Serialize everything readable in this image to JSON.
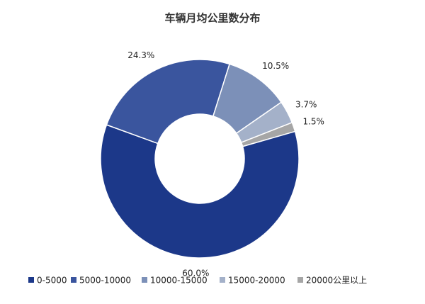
{
  "chart_data": {
    "type": "donut",
    "title": "车辆月均公里数分布",
    "categories": [
      "0-5000",
      "5000-10000",
      "10000-15000",
      "15000-20000",
      "20000公里以上"
    ],
    "values": [
      60.0,
      24.3,
      10.5,
      3.7,
      1.5
    ],
    "value_labels": [
      "60.0%",
      "24.3%",
      "10.5%",
      "3.7%",
      "1.5%"
    ],
    "colors": [
      "#1c3889",
      "#3a559e",
      "#7c90b8",
      "#a4b1c9",
      "#a6a6a6"
    ],
    "legend": "bottom"
  }
}
